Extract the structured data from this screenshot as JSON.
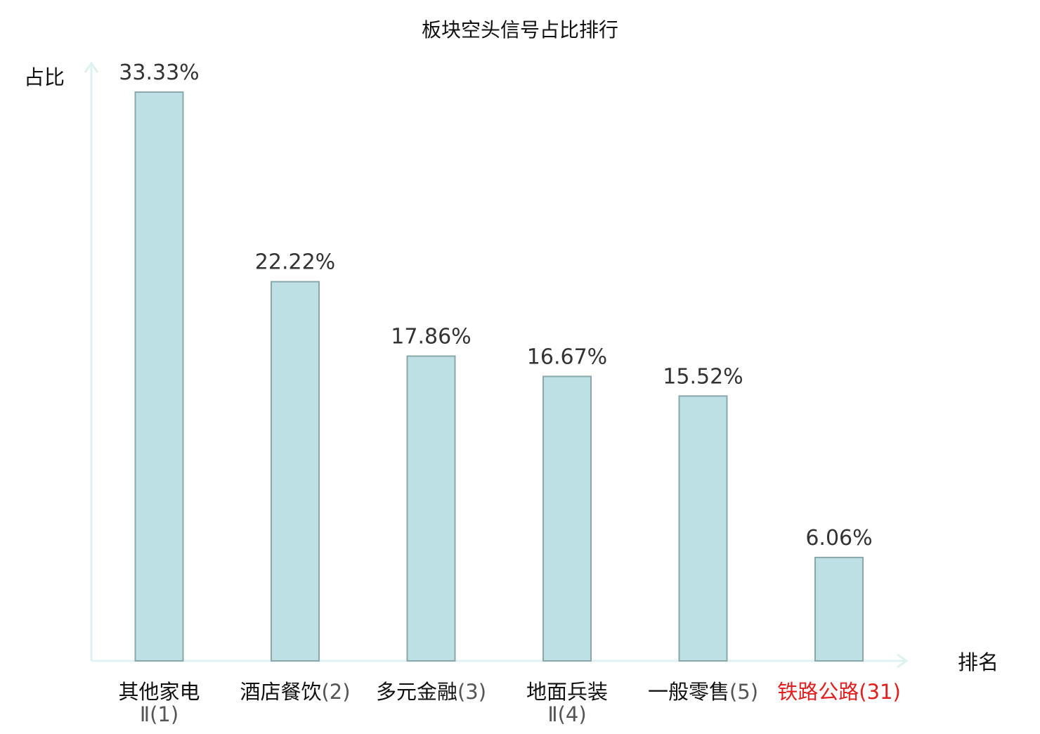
{
  "chart_data": {
    "type": "bar",
    "title": "板块空头信号占比排行",
    "ylabel": "占比",
    "xlabel": "排名",
    "ylim": [
      0,
      35
    ],
    "grid": false,
    "legend": "none",
    "value_unit": "%",
    "categories": [
      {
        "name": "其他家电",
        "rank_line2": "Ⅱ(1)",
        "rank": "",
        "highlight": false
      },
      {
        "name": "酒店餐饮",
        "rank_line2": "",
        "rank": "(2)",
        "highlight": false
      },
      {
        "name": "多元金融",
        "rank_line2": "",
        "rank": "(3)",
        "highlight": false
      },
      {
        "name": "地面兵装",
        "rank_line2": "Ⅱ(4)",
        "rank": "",
        "highlight": false
      },
      {
        "name": "一般零售",
        "rank_line2": "",
        "rank": "(5)",
        "highlight": false
      },
      {
        "name": "铁路公路",
        "rank_line2": "",
        "rank": "(31)",
        "highlight": true
      }
    ],
    "values": [
      33.33,
      22.22,
      17.86,
      16.67,
      15.52,
      6.06
    ],
    "value_labels": [
      "33.33%",
      "22.22%",
      "17.86%",
      "16.67%",
      "15.52%",
      "6.06%"
    ]
  },
  "colors": {
    "bar_fill": "#bce0e3",
    "bar_stroke": "#8aa8aa",
    "axis": "#e0f2f0",
    "text": "#333333",
    "label_text": "#111111",
    "rank_text": "#555555",
    "highlight": "#e02020"
  }
}
